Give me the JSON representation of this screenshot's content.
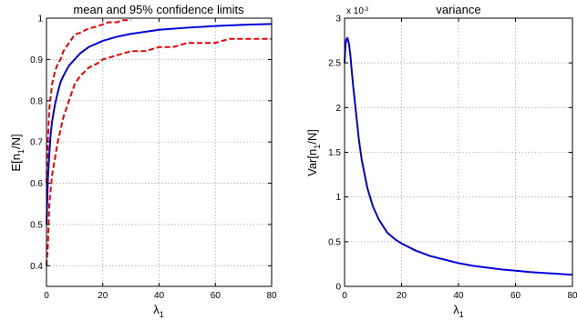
{
  "chart_data": [
    {
      "type": "line",
      "title": "mean and 95% confidence limits",
      "xlabel": {
        "main": "λ",
        "sub": "1"
      },
      "ylabel": {
        "pre": "E[n",
        "sub": "1",
        "post": "/N]"
      },
      "xlim": [
        0,
        80
      ],
      "ylim": [
        0.35,
        1.0
      ],
      "xticks": [
        0,
        20,
        40,
        60,
        80
      ],
      "yticks": [
        0.4,
        0.5,
        0.6,
        0.7,
        0.8,
        0.9,
        1.0
      ],
      "ytick_labels": [
        "0.4",
        "0.5",
        "0.6",
        "0.7",
        "0.8",
        "0.9",
        "1"
      ],
      "grid": true,
      "series": [
        {
          "style": "solid",
          "color": "#0000dd",
          "x": [
            0,
            0.5,
            1,
            1.5,
            2,
            3,
            4,
            5,
            6,
            8,
            10,
            12,
            15,
            20,
            25,
            30,
            40,
            50,
            60,
            70,
            80
          ],
          "y": [
            0.5,
            0.61,
            0.67,
            0.72,
            0.75,
            0.79,
            0.82,
            0.845,
            0.86,
            0.885,
            0.9,
            0.915,
            0.93,
            0.945,
            0.955,
            0.962,
            0.972,
            0.977,
            0.981,
            0.984,
            0.986
          ]
        },
        {
          "style": "dashed",
          "color": "#ee0000",
          "x": [
            0,
            0.5,
            1,
            2,
            3,
            4,
            5,
            6,
            8,
            10,
            12,
            15,
            18,
            20,
            22,
            25,
            27,
            30
          ],
          "y": [
            0.6,
            0.7,
            0.78,
            0.84,
            0.87,
            0.89,
            0.9,
            0.92,
            0.94,
            0.96,
            0.965,
            0.975,
            0.98,
            0.985,
            0.99,
            0.99,
            0.995,
            0.995
          ]
        },
        {
          "style": "dashed",
          "color": "#ee0000",
          "x": [
            0,
            0.5,
            1,
            2,
            3,
            4,
            5,
            6,
            8,
            10,
            12,
            15,
            18,
            20,
            25,
            30,
            35,
            40,
            45,
            50,
            55,
            60,
            65,
            70,
            80
          ],
          "y": [
            0.4,
            0.45,
            0.55,
            0.62,
            0.66,
            0.7,
            0.73,
            0.76,
            0.8,
            0.84,
            0.86,
            0.88,
            0.89,
            0.9,
            0.91,
            0.92,
            0.92,
            0.93,
            0.93,
            0.94,
            0.94,
            0.94,
            0.95,
            0.95,
            0.95
          ]
        }
      ]
    },
    {
      "type": "line",
      "title": "variance",
      "xlabel": {
        "main": "λ",
        "sub": "1"
      },
      "ylabel": {
        "pre": "Var[n",
        "sub": "1",
        "post": "/N]"
      },
      "xlim": [
        0,
        80
      ],
      "ylim": [
        0,
        3
      ],
      "xticks": [
        0,
        20,
        40,
        60,
        80
      ],
      "yticks": [
        0,
        0.5,
        1,
        1.5,
        2,
        2.5,
        3
      ],
      "ytick_labels": [
        "0",
        "0.5",
        "1",
        "1.5",
        "2",
        "2.5",
        "3"
      ],
      "y_multiplier": {
        "base": "x 10",
        "exp": "-3"
      },
      "grid": true,
      "series": [
        {
          "style": "solid",
          "color": "#0000dd",
          "x": [
            0,
            0.3,
            0.6,
            1,
            1.5,
            2,
            2.5,
            3,
            4,
            5,
            6,
            8,
            10,
            12,
            15,
            18,
            20,
            25,
            30,
            35,
            40,
            45,
            50,
            55,
            60,
            65,
            70,
            75,
            80
          ],
          "y": [
            2.5,
            2.7,
            2.76,
            2.78,
            2.72,
            2.6,
            2.42,
            2.25,
            1.95,
            1.65,
            1.42,
            1.1,
            0.89,
            0.75,
            0.6,
            0.52,
            0.48,
            0.4,
            0.34,
            0.3,
            0.26,
            0.23,
            0.21,
            0.19,
            0.175,
            0.16,
            0.15,
            0.14,
            0.13
          ]
        }
      ]
    }
  ]
}
